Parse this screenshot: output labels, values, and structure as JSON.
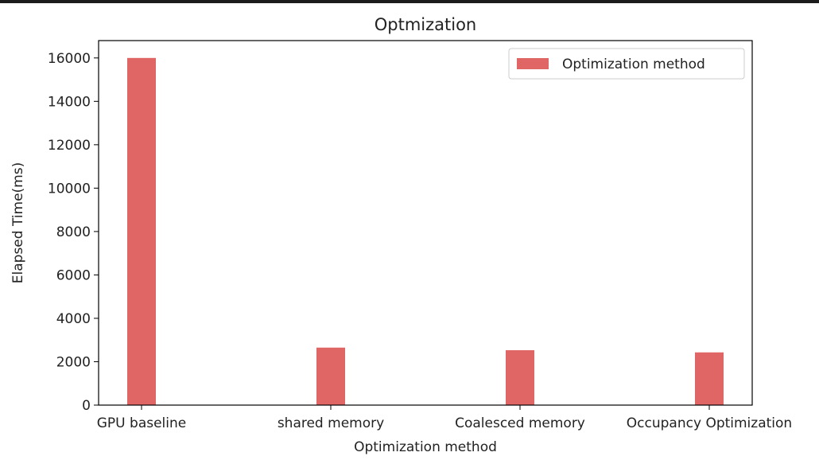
{
  "chart_data": {
    "type": "bar",
    "title": "Optmization",
    "xlabel": "Optimization method",
    "ylabel": "Elapsed Time(ms)",
    "categories": [
      "GPU baseline",
      "shared memory",
      "Coalesced memory",
      "Occupancy Optimization"
    ],
    "series": [
      {
        "name": "Optimization method",
        "values": [
          16000,
          2650,
          2530,
          2430
        ],
        "color": "#e06666"
      }
    ],
    "ylim": [
      0,
      16800
    ],
    "yticks": [
      "0",
      "2000",
      "4000",
      "6000",
      "8000",
      "10000",
      "12000",
      "14000",
      "16000"
    ],
    "grid": false,
    "legend": "top-right"
  }
}
